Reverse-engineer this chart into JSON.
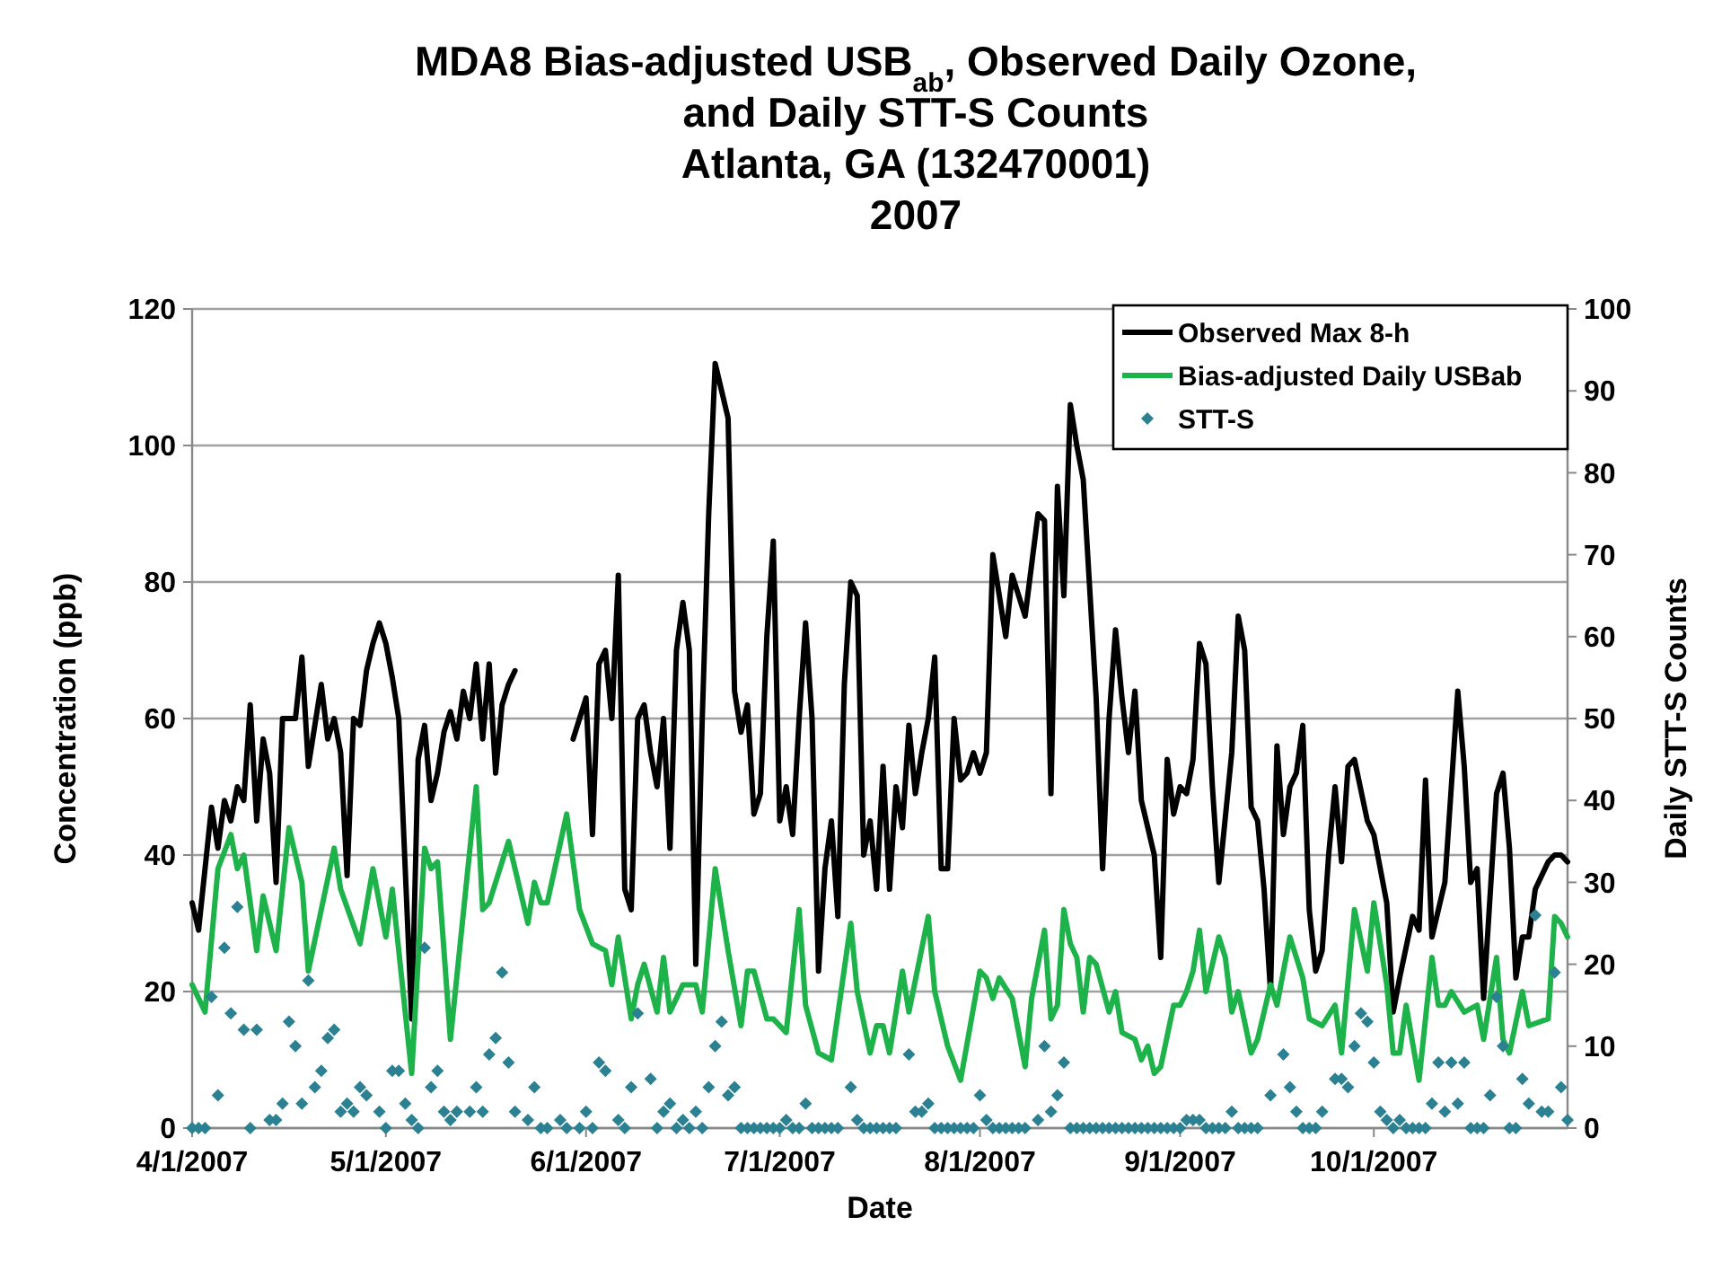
{
  "chart_data": {
    "type": "line",
    "title": "MDA8 Bias-adjusted USB$_{ab}$, Observed Daily Ozone,\nand Daily STT-S Counts",
    "subtitle": "Atlanta, GA (132470001)\n2007",
    "xlabel": "Date",
    "ylabel": "Concentration (ppb)",
    "y2label": "Daily STT-S Counts",
    "xlim": [
      "2007-04-01",
      "2007-10-31"
    ],
    "xticks": [
      {
        "value": "2007-04-01",
        "label": "4/1/2007"
      },
      {
        "value": "2007-05-01",
        "label": "5/1/2007"
      },
      {
        "value": "2007-06-01",
        "label": "6/1/2007"
      },
      {
        "value": "2007-07-01",
        "label": "7/1/2007"
      },
      {
        "value": "2007-08-01",
        "label": "8/1/2007"
      },
      {
        "value": "2007-09-01",
        "label": "9/1/2007"
      },
      {
        "value": "2007-10-01",
        "label": "10/1/2007"
      }
    ],
    "ylim": [
      0,
      120
    ],
    "yticks": [
      0,
      20,
      40,
      60,
      80,
      100,
      120
    ],
    "y2lim": [
      0,
      100
    ],
    "y2ticks": [
      0,
      10,
      20,
      30,
      40,
      50,
      60,
      70,
      80,
      90,
      100
    ],
    "grid": "y",
    "legend": "top right",
    "series": [
      {
        "name": "Observed Max 8-h",
        "color": "#000000",
        "x": [
          "2007-04-01",
          "2007-04-02",
          "2007-04-04",
          "2007-04-05",
          "2007-04-06",
          "2007-04-07",
          "2007-04-08",
          "2007-04-09",
          "2007-04-10",
          "2007-04-11",
          "2007-04-12",
          "2007-04-13",
          "2007-04-14",
          "2007-04-15",
          "2007-04-17",
          "2007-04-18",
          "2007-04-19",
          "2007-04-21",
          "2007-04-22",
          "2007-04-23",
          "2007-04-24",
          "2007-04-25",
          "2007-04-26",
          "2007-04-27",
          "2007-04-28",
          "2007-04-29",
          "2007-04-30",
          "2007-05-01",
          "2007-05-02",
          "2007-05-03",
          "2007-05-05",
          "2007-05-06",
          "2007-05-07",
          "2007-05-08",
          "2007-05-09",
          "2007-05-10",
          "2007-05-11",
          "2007-05-12",
          "2007-05-13",
          "2007-05-14",
          "2007-05-15",
          "2007-05-16",
          "2007-05-17",
          "2007-05-18",
          "2007-05-19",
          "2007-05-20",
          "2007-05-21",
          "2007-05-25",
          "2007-05-30",
          "2007-05-31",
          "2007-06-01",
          "2007-06-02",
          "2007-06-03",
          "2007-06-04",
          "2007-06-05",
          "2007-06-06",
          "2007-06-07",
          "2007-06-08",
          "2007-06-09",
          "2007-06-10",
          "2007-06-11",
          "2007-06-12",
          "2007-06-13",
          "2007-06-14",
          "2007-06-15",
          "2007-06-16",
          "2007-06-17",
          "2007-06-18",
          "2007-06-19",
          "2007-06-20",
          "2007-06-21",
          "2007-06-22",
          "2007-06-23",
          "2007-06-24",
          "2007-06-25",
          "2007-06-26",
          "2007-06-27",
          "2007-06-28",
          "2007-06-29",
          "2007-06-30",
          "2007-07-01",
          "2007-07-02",
          "2007-07-03",
          "2007-07-04",
          "2007-07-05",
          "2007-07-06",
          "2007-07-07",
          "2007-07-08",
          "2007-07-09",
          "2007-07-10",
          "2007-07-11",
          "2007-07-12",
          "2007-07-13",
          "2007-07-14",
          "2007-07-15",
          "2007-07-16",
          "2007-07-17",
          "2007-07-18",
          "2007-07-19",
          "2007-07-20",
          "2007-07-21",
          "2007-07-22",
          "2007-07-23",
          "2007-07-24",
          "2007-07-25",
          "2007-07-26",
          "2007-07-27",
          "2007-07-28",
          "2007-07-29",
          "2007-07-30",
          "2007-07-31",
          "2007-08-01",
          "2007-08-02",
          "2007-08-03",
          "2007-08-05",
          "2007-08-06",
          "2007-08-08",
          "2007-08-10",
          "2007-08-11",
          "2007-08-12",
          "2007-08-13",
          "2007-08-14",
          "2007-08-15",
          "2007-08-16",
          "2007-08-17",
          "2007-08-19",
          "2007-08-20",
          "2007-08-21",
          "2007-08-22",
          "2007-08-23",
          "2007-08-24",
          "2007-08-25",
          "2007-08-26",
          "2007-08-28",
          "2007-08-29",
          "2007-08-30",
          "2007-08-31",
          "2007-09-01",
          "2007-09-02",
          "2007-09-03",
          "2007-09-04",
          "2007-09-05",
          "2007-09-06",
          "2007-09-07",
          "2007-09-09",
          "2007-09-10",
          "2007-09-11",
          "2007-09-12",
          "2007-09-13",
          "2007-09-14",
          "2007-09-15",
          "2007-09-16",
          "2007-09-17",
          "2007-09-18",
          "2007-09-19",
          "2007-09-20",
          "2007-09-21",
          "2007-09-22",
          "2007-09-23",
          "2007-09-24",
          "2007-09-25",
          "2007-09-26",
          "2007-09-27",
          "2007-09-28",
          "2007-09-30",
          "2007-10-01",
          "2007-10-03",
          "2007-10-04",
          "2007-10-05",
          "2007-10-07",
          "2007-10-08",
          "2007-10-09",
          "2007-10-10",
          "2007-10-12",
          "2007-10-14",
          "2007-10-15",
          "2007-10-16",
          "2007-10-17",
          "2007-10-18",
          "2007-10-20",
          "2007-10-21",
          "2007-10-22",
          "2007-10-23",
          "2007-10-24",
          "2007-10-25",
          "2007-10-26",
          "2007-10-28",
          "2007-10-29",
          "2007-10-30",
          "2007-10-31"
        ],
        "values": [
          33,
          29,
          47,
          41,
          48,
          45,
          50,
          48,
          62,
          45,
          57,
          52,
          36,
          60,
          60,
          69,
          53,
          65,
          57,
          60,
          55,
          37,
          60,
          59,
          67,
          71,
          74,
          71,
          66,
          60,
          16,
          54,
          59,
          48,
          52,
          58,
          61,
          57,
          64,
          60,
          68,
          57,
          68,
          52,
          62,
          65,
          67,
          null,
          57,
          60,
          63,
          43,
          68,
          70,
          60,
          81,
          35,
          32,
          60,
          62,
          55,
          50,
          60,
          41,
          70,
          77,
          70,
          24,
          60,
          90,
          112,
          108,
          104,
          64,
          58,
          62,
          46,
          49,
          72,
          86,
          45,
          50,
          43,
          60,
          74,
          60,
          23,
          38,
          45,
          31,
          65,
          80,
          78,
          40,
          45,
          35,
          53,
          35,
          50,
          44,
          59,
          49,
          55,
          60,
          69,
          38,
          38,
          60,
          51,
          52,
          55,
          52,
          55,
          84,
          72,
          81,
          75,
          90,
          89,
          49,
          94,
          78,
          106,
          100,
          95,
          63,
          38,
          60,
          73,
          63,
          55,
          64,
          48,
          40,
          25,
          54,
          46,
          50,
          49,
          54,
          71,
          68,
          50,
          36,
          55,
          75,
          70,
          47,
          45,
          35,
          20,
          56,
          43,
          50,
          52,
          59,
          32,
          23,
          26,
          40,
          50,
          39,
          53,
          54,
          45,
          43,
          33,
          17,
          22,
          31,
          29,
          51,
          28,
          36,
          64,
          53,
          36,
          38,
          19,
          49,
          52,
          41,
          22,
          28,
          28,
          35,
          39,
          40,
          40,
          39
        ]
      },
      {
        "name": "Bias-adjusted Daily USBab",
        "color": "#1db34a",
        "x": [
          "2007-04-01",
          "2007-04-03",
          "2007-04-05",
          "2007-04-07",
          "2007-04-08",
          "2007-04-09",
          "2007-04-11",
          "2007-04-12",
          "2007-04-14",
          "2007-04-16",
          "2007-04-18",
          "2007-04-19",
          "2007-04-23",
          "2007-04-24",
          "2007-04-27",
          "2007-04-29",
          "2007-05-01",
          "2007-05-02",
          "2007-05-05",
          "2007-05-07",
          "2007-05-08",
          "2007-05-09",
          "2007-05-11",
          "2007-05-15",
          "2007-05-16",
          "2007-05-17",
          "2007-05-20",
          "2007-05-23",
          "2007-05-24",
          "2007-05-25",
          "2007-05-26",
          "2007-05-29",
          "2007-05-31",
          "2007-06-02",
          "2007-06-04",
          "2007-06-05",
          "2007-06-06",
          "2007-06-08",
          "2007-06-09",
          "2007-06-10",
          "2007-06-12",
          "2007-06-13",
          "2007-06-14",
          "2007-06-16",
          "2007-06-18",
          "2007-06-19",
          "2007-06-21",
          "2007-06-23",
          "2007-06-25",
          "2007-06-26",
          "2007-06-27",
          "2007-06-29",
          "2007-06-30",
          "2007-07-02",
          "2007-07-04",
          "2007-07-05",
          "2007-07-07",
          "2007-07-09",
          "2007-07-12",
          "2007-07-13",
          "2007-07-15",
          "2007-07-16",
          "2007-07-17",
          "2007-07-18",
          "2007-07-20",
          "2007-07-21",
          "2007-07-24",
          "2007-07-25",
          "2007-07-27",
          "2007-07-29",
          "2007-08-01",
          "2007-08-02",
          "2007-08-03",
          "2007-08-04",
          "2007-08-06",
          "2007-08-08",
          "2007-08-09",
          "2007-08-11",
          "2007-08-12",
          "2007-08-13",
          "2007-08-14",
          "2007-08-15",
          "2007-08-16",
          "2007-08-17",
          "2007-08-18",
          "2007-08-19",
          "2007-08-21",
          "2007-08-22",
          "2007-08-23",
          "2007-08-25",
          "2007-08-26",
          "2007-08-27",
          "2007-08-28",
          "2007-08-29",
          "2007-08-31",
          "2007-09-01",
          "2007-09-02",
          "2007-09-03",
          "2007-09-04",
          "2007-09-05",
          "2007-09-07",
          "2007-09-08",
          "2007-09-09",
          "2007-09-10",
          "2007-09-12",
          "2007-09-13",
          "2007-09-15",
          "2007-09-16",
          "2007-09-18",
          "2007-09-20",
          "2007-09-21",
          "2007-09-23",
          "2007-09-25",
          "2007-09-26",
          "2007-09-28",
          "2007-09-30",
          "2007-10-01",
          "2007-10-03",
          "2007-10-04",
          "2007-10-05",
          "2007-10-06",
          "2007-10-08",
          "2007-10-10",
          "2007-10-11",
          "2007-10-12",
          "2007-10-13",
          "2007-10-15",
          "2007-10-17",
          "2007-10-18",
          "2007-10-20",
          "2007-10-21",
          "2007-10-22",
          "2007-10-24",
          "2007-10-25",
          "2007-10-28",
          "2007-10-29",
          "2007-10-30",
          "2007-10-31"
        ],
        "values": [
          21,
          17,
          38,
          43,
          38,
          40,
          26,
          34,
          26,
          44,
          36,
          23,
          41,
          35,
          27,
          38,
          28,
          35,
          8,
          41,
          38,
          39,
          13,
          50,
          32,
          33,
          42,
          30,
          36,
          33,
          33,
          46,
          32,
          27,
          26,
          21,
          28,
          16,
          21,
          24,
          17,
          25,
          17,
          21,
          21,
          17,
          38,
          26,
          15,
          23,
          23,
          16,
          16,
          14,
          32,
          18,
          11,
          10,
          30,
          20,
          11,
          15,
          15,
          11,
          23,
          17,
          31,
          20,
          12,
          7,
          23,
          22,
          19,
          22,
          19,
          9,
          19,
          29,
          16,
          18,
          32,
          27,
          25,
          17,
          25,
          24,
          17,
          20,
          14,
          13,
          10,
          12,
          8,
          9,
          18,
          18,
          20,
          23,
          29,
          20,
          28,
          25,
          17,
          20,
          11,
          13,
          21,
          18,
          28,
          22,
          16,
          15,
          18,
          11,
          32,
          23,
          33,
          21,
          11,
          11,
          18,
          7,
          25,
          18,
          18,
          20,
          17,
          18,
          13,
          25,
          13,
          11,
          20,
          15,
          16,
          31,
          30,
          28
        ]
      },
      {
        "name": "STT-S",
        "type": "scatter",
        "axis": "y2",
        "marker": "diamond",
        "color": "#2b8092",
        "x": [
          "2007-04-01",
          "2007-04-02",
          "2007-04-03",
          "2007-04-04",
          "2007-04-05",
          "2007-04-06",
          "2007-04-07",
          "2007-04-08",
          "2007-04-09",
          "2007-04-10",
          "2007-04-11",
          "2007-04-13",
          "2007-04-14",
          "2007-04-15",
          "2007-04-16",
          "2007-04-17",
          "2007-04-18",
          "2007-04-19",
          "2007-04-20",
          "2007-04-21",
          "2007-04-22",
          "2007-04-23",
          "2007-04-24",
          "2007-04-25",
          "2007-04-26",
          "2007-04-27",
          "2007-04-28",
          "2007-04-30",
          "2007-05-01",
          "2007-05-02",
          "2007-05-03",
          "2007-05-04",
          "2007-05-05",
          "2007-05-06",
          "2007-05-07",
          "2007-05-08",
          "2007-05-09",
          "2007-05-10",
          "2007-05-11",
          "2007-05-12",
          "2007-05-14",
          "2007-05-15",
          "2007-05-16",
          "2007-05-17",
          "2007-05-18",
          "2007-05-19",
          "2007-05-20",
          "2007-05-21",
          "2007-05-23",
          "2007-05-24",
          "2007-05-25",
          "2007-05-26",
          "2007-05-28",
          "2007-05-29",
          "2007-05-31",
          "2007-06-01",
          "2007-06-02",
          "2007-06-03",
          "2007-06-04",
          "2007-06-06",
          "2007-06-07",
          "2007-06-08",
          "2007-06-09",
          "2007-06-11",
          "2007-06-12",
          "2007-06-13",
          "2007-06-14",
          "2007-06-15",
          "2007-06-16",
          "2007-06-17",
          "2007-06-18",
          "2007-06-19",
          "2007-06-20",
          "2007-06-21",
          "2007-06-22",
          "2007-06-23",
          "2007-06-24",
          "2007-06-25",
          "2007-06-26",
          "2007-06-27",
          "2007-06-28",
          "2007-06-29",
          "2007-06-30",
          "2007-07-01",
          "2007-07-02",
          "2007-07-03",
          "2007-07-04",
          "2007-07-05",
          "2007-07-06",
          "2007-07-07",
          "2007-07-08",
          "2007-07-09",
          "2007-07-10",
          "2007-07-12",
          "2007-07-13",
          "2007-07-14",
          "2007-07-15",
          "2007-07-16",
          "2007-07-17",
          "2007-07-18",
          "2007-07-19",
          "2007-07-21",
          "2007-07-22",
          "2007-07-23",
          "2007-07-24",
          "2007-07-25",
          "2007-07-26",
          "2007-07-27",
          "2007-07-28",
          "2007-07-29",
          "2007-07-30",
          "2007-07-31",
          "2007-08-01",
          "2007-08-02",
          "2007-08-03",
          "2007-08-04",
          "2007-08-05",
          "2007-08-06",
          "2007-08-07",
          "2007-08-08",
          "2007-08-10",
          "2007-08-11",
          "2007-08-12",
          "2007-08-13",
          "2007-08-14",
          "2007-08-15",
          "2007-08-16",
          "2007-08-17",
          "2007-08-18",
          "2007-08-19",
          "2007-08-20",
          "2007-08-21",
          "2007-08-22",
          "2007-08-23",
          "2007-08-24",
          "2007-08-25",
          "2007-08-26",
          "2007-08-27",
          "2007-08-28",
          "2007-08-29",
          "2007-08-30",
          "2007-08-31",
          "2007-09-01",
          "2007-09-02",
          "2007-09-03",
          "2007-09-04",
          "2007-09-05",
          "2007-09-06",
          "2007-09-07",
          "2007-09-08",
          "2007-09-09",
          "2007-09-10",
          "2007-09-11",
          "2007-09-12",
          "2007-09-13",
          "2007-09-15",
          "2007-09-17",
          "2007-09-18",
          "2007-09-19",
          "2007-09-20",
          "2007-09-21",
          "2007-09-22",
          "2007-09-23",
          "2007-09-25",
          "2007-09-26",
          "2007-09-27",
          "2007-09-28",
          "2007-09-29",
          "2007-09-30",
          "2007-10-01",
          "2007-10-02",
          "2007-10-03",
          "2007-10-04",
          "2007-10-05",
          "2007-10-06",
          "2007-10-07",
          "2007-10-08",
          "2007-10-09",
          "2007-10-10",
          "2007-10-11",
          "2007-10-12",
          "2007-10-13",
          "2007-10-14",
          "2007-10-15",
          "2007-10-16",
          "2007-10-17",
          "2007-10-18",
          "2007-10-19",
          "2007-10-20",
          "2007-10-21",
          "2007-10-22",
          "2007-10-23",
          "2007-10-24",
          "2007-10-25",
          "2007-10-26",
          "2007-10-27",
          "2007-10-28",
          "2007-10-29",
          "2007-10-30",
          "2007-10-31"
        ],
        "values": [
          0,
          0,
          0,
          16,
          4,
          22,
          14,
          27,
          12,
          0,
          12,
          1,
          1,
          3,
          13,
          10,
          3,
          18,
          5,
          7,
          11,
          12,
          2,
          3,
          2,
          5,
          4,
          2,
          0,
          7,
          7,
          3,
          1,
          0,
          22,
          5,
          7,
          2,
          1,
          2,
          2,
          5,
          2,
          9,
          11,
          19,
          8,
          2,
          1,
          5,
          0,
          0,
          1,
          0,
          0,
          2,
          0,
          8,
          7,
          1,
          0,
          5,
          14,
          6,
          0,
          2,
          3,
          0,
          1,
          0,
          2,
          0,
          5,
          10,
          13,
          4,
          5,
          0,
          0,
          0,
          0,
          0,
          0,
          0,
          1,
          0,
          0,
          3,
          0,
          0,
          0,
          0,
          0,
          5,
          1,
          0,
          0,
          0,
          0,
          0,
          0,
          9,
          2,
          2,
          3,
          0,
          0,
          0,
          0,
          0,
          0,
          0,
          4,
          1,
          0,
          0,
          0,
          0,
          0,
          0,
          1,
          10,
          2,
          4,
          8,
          0,
          0,
          0,
          0,
          0,
          0,
          0,
          0,
          0,
          0,
          0,
          0,
          0,
          0,
          0,
          0,
          0,
          0,
          1,
          1,
          1,
          0,
          0,
          0,
          0,
          2,
          0,
          0,
          0,
          0,
          4,
          9,
          5,
          2,
          0,
          0,
          0,
          2,
          6,
          6,
          5,
          10,
          14,
          13,
          8,
          2,
          1,
          0,
          1,
          0,
          0,
          0,
          0,
          3,
          8,
          2,
          8,
          3,
          8,
          0,
          0,
          0,
          4,
          16,
          10,
          0,
          0,
          6,
          3,
          26,
          2,
          2,
          19,
          5,
          1
        ]
      }
    ]
  }
}
